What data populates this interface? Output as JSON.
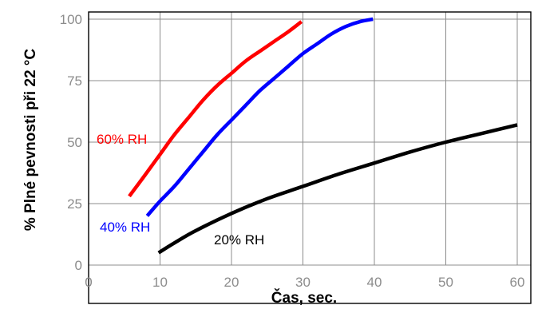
{
  "chart_data": {
    "type": "line",
    "title": "",
    "xlabel": "Čas, sec.",
    "ylabel": "% Plné pevnosti při 22 °C",
    "xlim": [
      0,
      60
    ],
    "ylim": [
      0,
      100
    ],
    "x_ticks": [
      "0",
      "10",
      "20",
      "30",
      "40",
      "50",
      "60"
    ],
    "y_ticks": [
      "0",
      "25",
      "50",
      "75",
      "100"
    ],
    "grid": true,
    "series": [
      {
        "name": "60% RH",
        "color": "#ff0000",
        "x": [
          5.7,
          8,
          10,
          12,
          14,
          16,
          18,
          20,
          22,
          24,
          26,
          28,
          29.8
        ],
        "y": [
          28,
          37,
          45,
          53,
          60,
          67,
          73,
          78,
          83,
          87,
          91,
          95,
          99
        ]
      },
      {
        "name": "40% RH",
        "color": "#0000ff",
        "x": [
          8.2,
          10,
          12,
          14,
          16,
          18,
          20,
          22,
          24,
          26,
          28,
          30,
          32,
          34,
          36,
          38,
          39.8
        ],
        "y": [
          20,
          26,
          32,
          39,
          46,
          53,
          59,
          65,
          71,
          76,
          81,
          86,
          90,
          94,
          97,
          99,
          100
        ]
      },
      {
        "name": "20% RH",
        "color": "#000000",
        "x": [
          9.8,
          12,
          15,
          20,
          25,
          30,
          35,
          40,
          45,
          50,
          55,
          60
        ],
        "y": [
          5,
          9,
          14,
          21,
          27,
          32,
          37,
          41.5,
          46,
          50,
          53.5,
          57
        ]
      }
    ]
  }
}
